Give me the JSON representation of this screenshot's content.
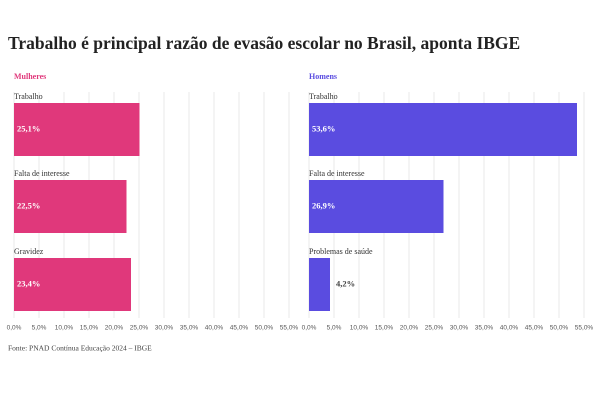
{
  "title": "Trabalho é principal razão de evasão escolar no Brasil, aponta IBGE",
  "source": "Fonte: PNAD Contínua Educação 2024 – IBGE",
  "chart_data": [
    {
      "type": "hbar",
      "title": "Mulheres",
      "color": "#e0387b",
      "categories": [
        "Trabalho",
        "Falta de interesse",
        "Gravidez"
      ],
      "values": [
        25.1,
        22.5,
        23.4
      ],
      "value_labels": [
        "25,1%",
        "22,5%",
        "23,4%"
      ],
      "xlim": [
        0,
        55
      ],
      "xticks": [
        {
          "value": 0,
          "label": "0,0%"
        },
        {
          "value": 5,
          "label": "5,0%"
        },
        {
          "value": 10,
          "label": "10,0%"
        },
        {
          "value": 15,
          "label": "15,0%"
        },
        {
          "value": 20,
          "label": "20,0%"
        },
        {
          "value": 25,
          "label": "25,0%"
        },
        {
          "value": 30,
          "label": "30,0%"
        },
        {
          "value": 35,
          "label": "35,0%"
        },
        {
          "value": 40,
          "label": "40,0%"
        },
        {
          "value": 45,
          "label": "45,0%"
        },
        {
          "value": 50,
          "label": "50,0%"
        },
        {
          "value": 55,
          "label": "55,0%"
        }
      ],
      "grid": true
    },
    {
      "type": "hbar",
      "title": "Homens",
      "color": "#5a4ce0",
      "categories": [
        "Trabalho",
        "Falta de interesse",
        "Problemas de saúde"
      ],
      "values": [
        53.6,
        26.9,
        4.2
      ],
      "value_labels": [
        "53,6%",
        "26,9%",
        "4,2%"
      ],
      "xlim": [
        0,
        55
      ],
      "xticks": [
        {
          "value": 0,
          "label": "0,0%"
        },
        {
          "value": 5,
          "label": "5,0%"
        },
        {
          "value": 10,
          "label": "10,0%"
        },
        {
          "value": 15,
          "label": "15,0%"
        },
        {
          "value": 20,
          "label": "20,0%"
        },
        {
          "value": 25,
          "label": "25,0%"
        },
        {
          "value": 30,
          "label": "30,0%"
        },
        {
          "value": 35,
          "label": "35,0%"
        },
        {
          "value": 40,
          "label": "40,0%"
        },
        {
          "value": 45,
          "label": "45,0%"
        },
        {
          "value": 50,
          "label": "50,0%"
        },
        {
          "value": 55,
          "label": "55,0%"
        }
      ],
      "grid": true
    }
  ]
}
